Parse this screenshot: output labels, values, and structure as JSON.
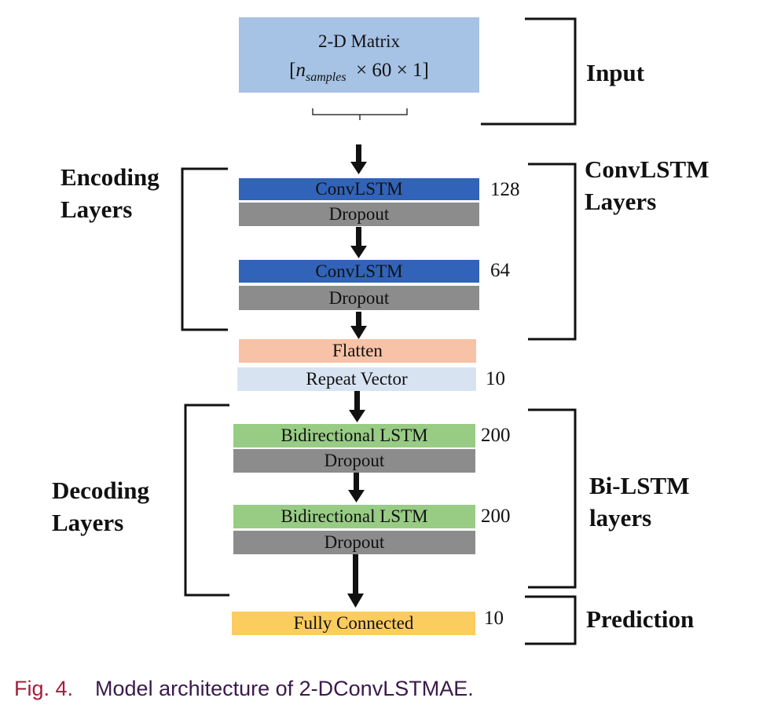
{
  "input": {
    "title": "2-D Matrix",
    "dim_var": "n",
    "dim_sub": "samples",
    "dim_rest": "× 60 × 1]",
    "dim_open": "["
  },
  "layers": {
    "convlstm1": "ConvLSTM",
    "dropout1": "Dropout",
    "convlstm2": "ConvLSTM",
    "dropout2": "Dropout",
    "flatten": "Flatten",
    "repeat": "Repeat Vector",
    "bilstm1": "Bidirectional LSTM",
    "dropout3": "Dropout",
    "bilstm2": "Bidirectional LSTM",
    "dropout4": "Dropout",
    "fc": "Fully Connected"
  },
  "units": {
    "convlstm1": "128",
    "convlstm2": "64",
    "repeat": "10",
    "bilstm1": "200",
    "bilstm2": "200",
    "fc": "10"
  },
  "groups": {
    "input": "Input",
    "convlstm_1": "ConvLSTM",
    "convlstm_2": "Layers",
    "encoding_1": "Encoding",
    "encoding_2": "Layers",
    "decoding_1": "Decoding",
    "decoding_2": "Layers",
    "bilstm_1": "Bi-LSTM",
    "bilstm_2": "layers",
    "prediction": "Prediction"
  },
  "caption": {
    "fig": "Fig. 4.",
    "text": "Model architecture of 2-DConvLSTMAE."
  },
  "colors": {
    "convlstm": "#3163b8",
    "dropout": "#8c8c8c",
    "flatten": "#f7c2a5",
    "repeat": "#d8e3f2",
    "bilstm": "#98cc84",
    "fc": "#fbcc5e",
    "input": "#a6c2e4"
  }
}
